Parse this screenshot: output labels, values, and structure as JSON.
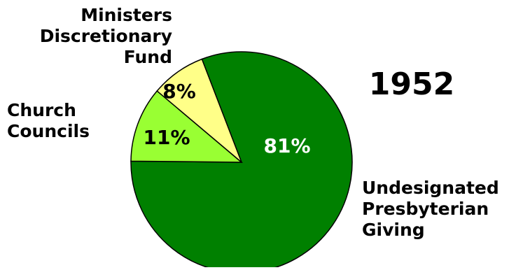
{
  "chart_data": {
    "type": "pie",
    "title": "1952",
    "slices": [
      {
        "label": "Undesignated Presbyterian Giving",
        "label_lines": [
          "Undesignated",
          "Presbyterian",
          "Giving"
        ],
        "value": 81,
        "value_label": "81%",
        "color": "#008000",
        "value_text_color": "#ffffff"
      },
      {
        "label": "Church Councils",
        "label_lines": [
          "Church",
          "Councils"
        ],
        "value": 11,
        "value_label": "11%",
        "color": "#99ff33",
        "value_text_color": "#000000"
      },
      {
        "label": "Ministers Discretionary Fund",
        "label_lines": [
          "Ministers",
          "Discretionary",
          "Fund"
        ],
        "value": 8,
        "value_label": "8%",
        "color": "#ffff88",
        "value_text_color": "#000000"
      }
    ],
    "start_angle_deg": -21,
    "direction": "clockwise",
    "outline_color": "#000000"
  }
}
